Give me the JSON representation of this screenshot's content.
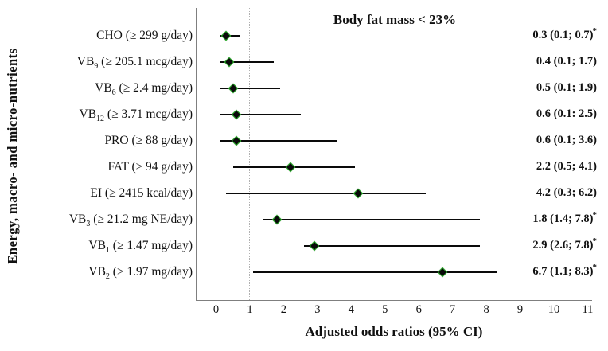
{
  "chart_data": {
    "type": "forest",
    "title": "Body fat mass < 23%",
    "xlabel": "Adjusted odds ratios (95% CI)",
    "ylabel": "Energy, macro- and micro-nutrients",
    "xlim": [
      0,
      11
    ],
    "xticks": [
      0,
      1,
      2,
      3,
      4,
      5,
      6,
      7,
      8,
      9,
      10,
      11
    ],
    "reference_line_x": 1,
    "grid": "off",
    "significance_marker": "*",
    "colors": {
      "diamond_fill": "#0a0a0a",
      "diamond_border": "#2eb82e",
      "ci_line": "#0a0a0a",
      "axis_line": "#7f7f7f",
      "reference_line": "#b0b0b0",
      "text": "#111111"
    },
    "rows": [
      {
        "label_prefix": "CHO",
        "label_sub": "",
        "label_rest": " (≥ 299 g/day)",
        "or": 0.3,
        "lo": 0.1,
        "hi": 0.7,
        "value_text": "0.3 (0.1; 0.7)",
        "significant": true
      },
      {
        "label_prefix": "VB",
        "label_sub": "9",
        "label_rest": " (≥ 205.1 mcg/day)",
        "or": 0.4,
        "lo": 0.1,
        "hi": 1.7,
        "value_text": "0.4 (0.1; 1.7)",
        "significant": false
      },
      {
        "label_prefix": "VB",
        "label_sub": "6",
        "label_rest": " (≥ 2.4 mg/day)",
        "or": 0.5,
        "lo": 0.1,
        "hi": 1.9,
        "value_text": "0.5 (0.1; 1.9)",
        "significant": false
      },
      {
        "label_prefix": "VB",
        "label_sub": "12",
        "label_rest": " (≥ 3.71 mcg/day)",
        "or": 0.6,
        "lo": 0.1,
        "hi": 2.5,
        "value_text": "0.6 (0.1: 2.5)",
        "significant": false
      },
      {
        "label_prefix": "PRO",
        "label_sub": "",
        "label_rest": " (≥ 88 g/day)",
        "or": 0.6,
        "lo": 0.1,
        "hi": 3.6,
        "value_text": "0.6 (0.1; 3.6)",
        "significant": false
      },
      {
        "label_prefix": "FAT",
        "label_sub": "",
        "label_rest": " (≥ 94 g/day)",
        "or": 2.2,
        "lo": 0.5,
        "hi": 4.1,
        "value_text": "2.2 (0.5; 4.1)",
        "significant": false
      },
      {
        "label_prefix": "EI",
        "label_sub": "",
        "label_rest": " (≥ 2415 kcal/day)",
        "or": 4.2,
        "lo": 0.3,
        "hi": 6.2,
        "value_text": "4.2 (0.3; 6.2)",
        "significant": false
      },
      {
        "label_prefix": "VB",
        "label_sub": "3",
        "label_rest": " (≥ 21.2 mg NE/day)",
        "or": 1.8,
        "lo": 1.4,
        "hi": 7.8,
        "value_text": "1.8 (1.4; 7.8)",
        "significant": true
      },
      {
        "label_prefix": "VB",
        "label_sub": "1",
        "label_rest": " (≥ 1.47 mg/day)",
        "or": 2.9,
        "lo": 2.6,
        "hi": 7.8,
        "value_text": "2.9 (2.6; 7.8)",
        "significant": true
      },
      {
        "label_prefix": "VB",
        "label_sub": "2",
        "label_rest": " (≥ 1.97 mg/day)",
        "or": 6.7,
        "lo": 1.1,
        "hi": 8.3,
        "value_text": "6.7 (1.1; 8.3)",
        "significant": true
      }
    ]
  }
}
